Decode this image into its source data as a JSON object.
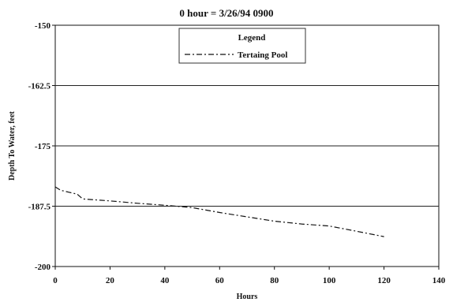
{
  "chart_data": {
    "type": "line",
    "title": "0 hour = 3/26/94 0900",
    "xlabel": "Hours",
    "ylabel": "Depth To Water, feet",
    "xlim": [
      0,
      140
    ],
    "ylim": [
      -200,
      -150
    ],
    "x_ticks": [
      "0",
      "20",
      "40",
      "60",
      "80",
      "100",
      "120",
      "140"
    ],
    "y_ticks": [
      "-150",
      "-162.5",
      "-175",
      "-187.5",
      "-200"
    ],
    "grid": "horizontal",
    "legend": {
      "title": "Legend",
      "placement": "top-center",
      "entries": [
        "Tertaing Pool"
      ]
    },
    "series": [
      {
        "name": "Tertaing Pool",
        "line_style": "dash-dot",
        "color": "#111111",
        "x": [
          0,
          2,
          5,
          8,
          10,
          20,
          30,
          40,
          50,
          60,
          70,
          80,
          90,
          100,
          110,
          120
        ],
        "y": [
          -183.5,
          -184.2,
          -184.6,
          -185.0,
          -186.0,
          -186.4,
          -186.9,
          -187.3,
          -187.8,
          -188.8,
          -189.7,
          -190.6,
          -191.2,
          -191.6,
          -192.7,
          -193.8
        ]
      }
    ]
  }
}
